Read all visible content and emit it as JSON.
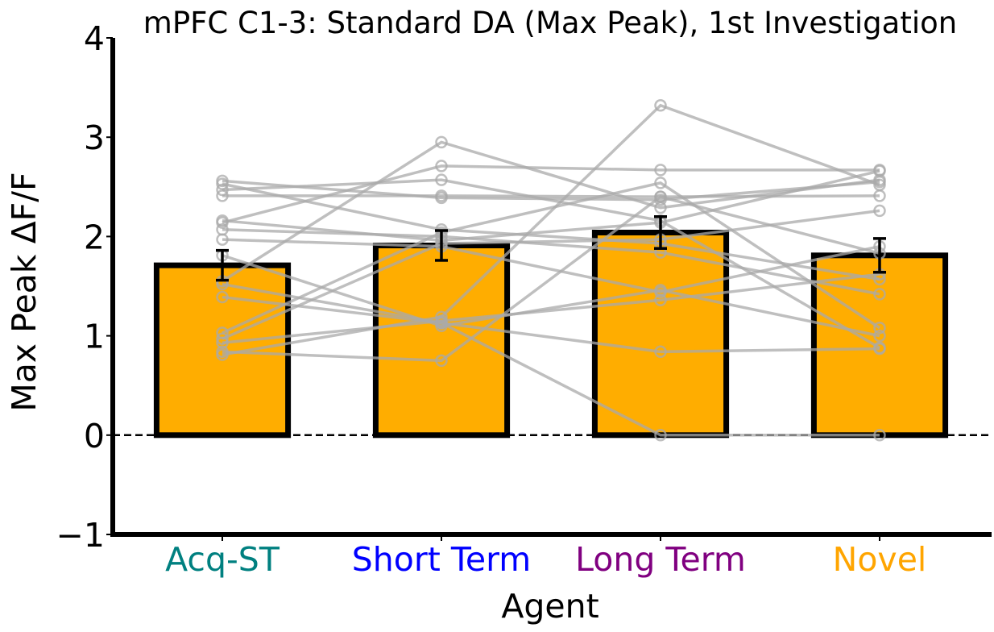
{
  "chart_data": {
    "type": "bar",
    "title": "mPFC C1-3: Standard DA (Max Peak), 1st Investigation",
    "xlabel": "Agent",
    "ylabel": "Max Peak ΔF/F",
    "ylim": [
      -1,
      4
    ],
    "yticks": [
      -1,
      0,
      1,
      2,
      3,
      4
    ],
    "ytick_labels": [
      "−1",
      "0",
      "1",
      "2",
      "3",
      "4"
    ],
    "grid": false,
    "legend": "none",
    "reference_line": {
      "y": 0,
      "style": "dashed"
    },
    "categories": [
      "Acq-ST",
      "Short Term",
      "Long Term",
      "Novel"
    ],
    "category_colors": [
      "#008080",
      "#0000ff",
      "#800080",
      "#ffa500"
    ],
    "bar_fill": "#ffad00",
    "bar_edge": "#000000",
    "values": [
      1.71,
      1.91,
      2.04,
      1.81
    ],
    "error": [
      0.15,
      0.15,
      0.16,
      0.17
    ],
    "subject_color": "#a9a9a9",
    "subjects": [
      [
        2.56,
        2.39,
        2.37,
        2.55
      ],
      [
        2.53,
        2.07,
        1.93,
        1.57
      ],
      [
        2.47,
        2.57,
        2.16,
        0.88
      ],
      [
        2.41,
        2.41,
        2.4,
        2.41
      ],
      [
        2.16,
        1.96,
        2.14,
        2.66
      ],
      [
        2.14,
        2.71,
        2.67,
        2.67
      ],
      [
        2.07,
        2.0,
        1.84,
        1.42
      ],
      [
        1.97,
        1.9,
        1.44,
        1.9
      ],
      [
        1.81,
        1.1,
        1.46,
        1.0
      ],
      [
        1.55,
        2.95,
        2.29,
        2.57
      ],
      [
        1.52,
        1.13,
        0.0,
        0.0
      ],
      [
        1.39,
        1.13,
        0.84,
        0.87
      ],
      [
        1.03,
        2.04,
        2.54,
        1.08
      ],
      [
        0.93,
        1.15,
        1.36,
        1.62
      ],
      [
        0.84,
        0.75,
        2.4,
        1.83
      ],
      [
        0.81,
        1.19,
        3.32,
        2.52
      ],
      [
        0.97,
        1.93,
        1.97,
        2.26
      ]
    ]
  }
}
